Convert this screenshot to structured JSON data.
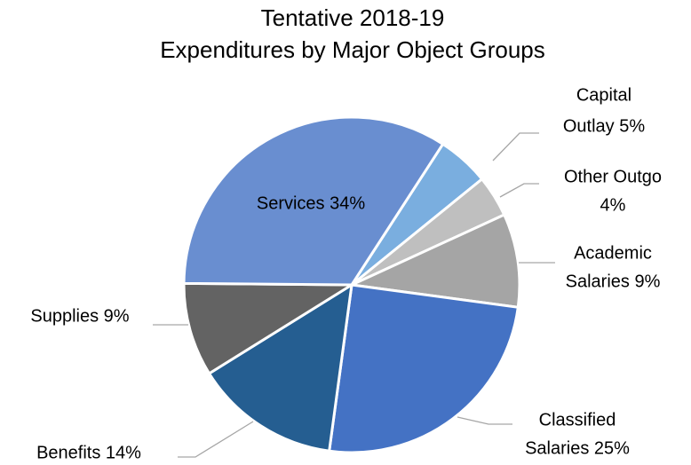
{
  "chart_data": {
    "type": "pie",
    "title": [
      "Tentative 2018-19",
      "Expenditures by Major Object Groups"
    ],
    "values": [
      5,
      4,
      9,
      25,
      14,
      9,
      34
    ],
    "value_labels": [
      [
        "Capital",
        "Outlay 5%"
      ],
      [
        "Other Outgo",
        "4%"
      ],
      [
        "Academic",
        "Salaries 9%"
      ],
      [
        "Classified",
        "Salaries 25%"
      ],
      [
        "Benefits 14%"
      ],
      [
        "Supplies 9%"
      ],
      [
        "Services 34%"
      ]
    ],
    "colors": [
      "#7aaedf",
      "#bfbfbf",
      "#a5a5a5",
      "#4472c4",
      "#255e91",
      "#636363",
      "#698ed0"
    ]
  }
}
